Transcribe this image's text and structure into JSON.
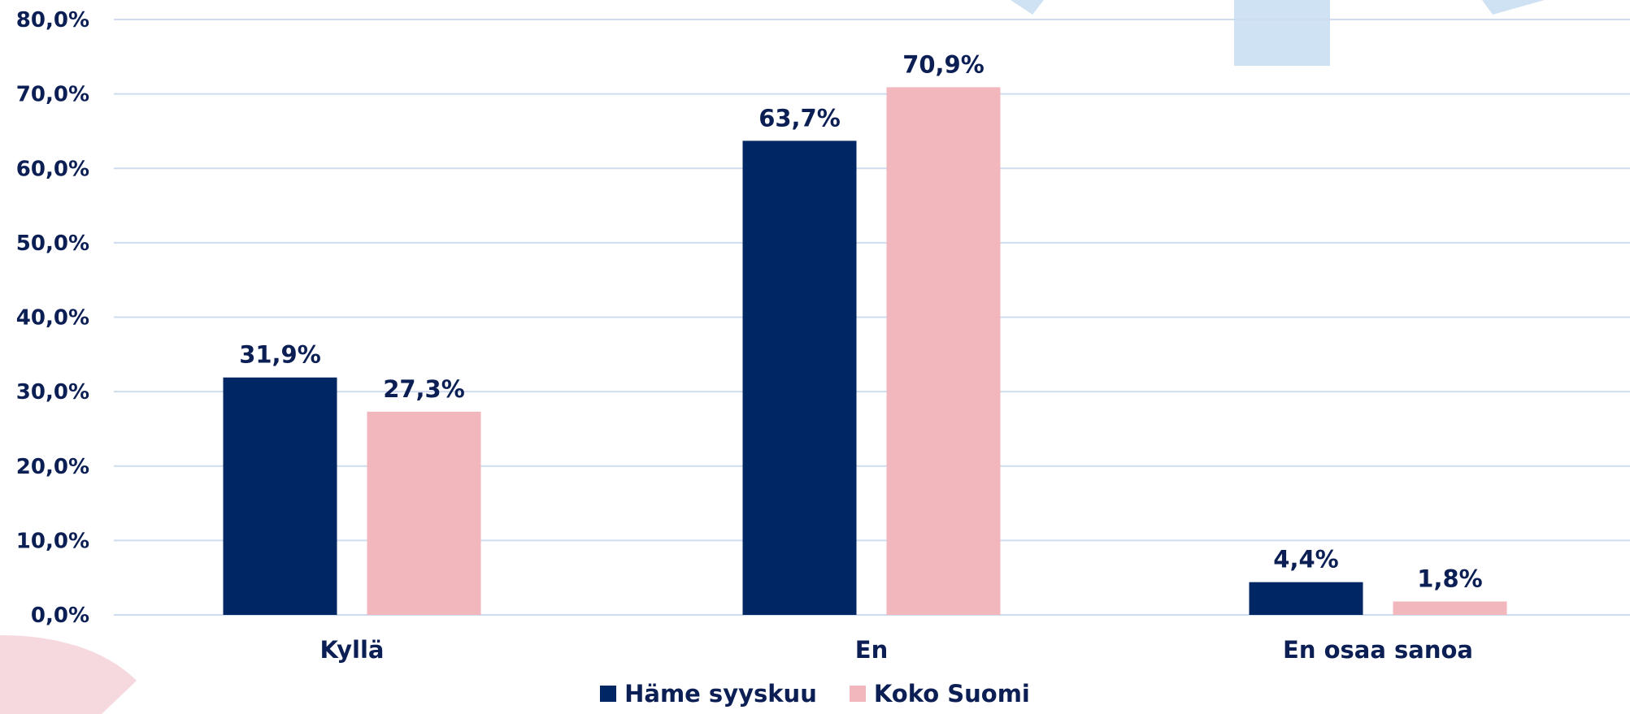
{
  "chart_data": {
    "type": "bar",
    "categories": [
      "Kyllä",
      "En",
      "En osaa sanoa"
    ],
    "series": [
      {
        "name": "Häme syyskuu",
        "values": [
          31.9,
          63.7,
          4.4
        ],
        "labels": [
          "31,9%",
          "63,7%",
          "4,4%"
        ],
        "color": "#002663"
      },
      {
        "name": "Koko Suomi",
        "values": [
          27.3,
          70.9,
          1.8
        ],
        "labels": [
          "27,3%",
          "70,9%",
          "1,8%"
        ],
        "color": "#f2b6bd"
      }
    ],
    "yticks": [
      "0,0%",
      "10,0%",
      "20,0%",
      "30,0%",
      "40,0%",
      "50,0%",
      "60,0%",
      "70,0%",
      "80,0%"
    ],
    "ylim": [
      0,
      80
    ],
    "grid": true,
    "legend": "bottom",
    "gridColor": "#cfdcef",
    "decorColors": {
      "pink": "#f6d9de",
      "blue": "#cfe2f3"
    }
  }
}
